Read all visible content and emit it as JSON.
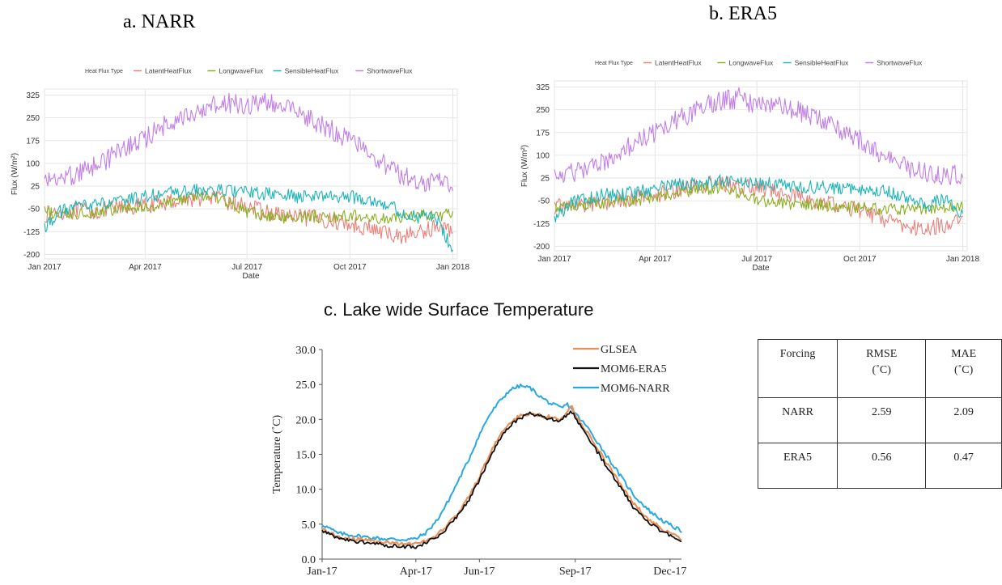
{
  "panels": {
    "a_title": "a.    NARR",
    "b_title": "b.    ERA5",
    "c_title": "c. Lake wide Surface Temperature"
  },
  "colors": {
    "LatentHeatFlux": "#e8817a",
    "LongwaveFlux": "#8ab022",
    "SensibleHeatFlux": "#1fb5b7",
    "ShortwaveFlux": "#c17fe6",
    "GLSEA": "#e8915a",
    "MOM6-ERA5": "#111111",
    "MOM6-NARR": "#29a9e0"
  },
  "chart_data": [
    {
      "id": "narr",
      "type": "line",
      "legend_title": "Heat Flux Type",
      "legend_placement": "top",
      "xlabel": "Date",
      "ylabel": "Flux (W/m²)",
      "xlim": [
        "2017-01-01",
        "2018-01-05"
      ],
      "ylim": [
        -215,
        345
      ],
      "yticks": [
        -200,
        -125,
        -50,
        25,
        100,
        175,
        250,
        325
      ],
      "xticks": [
        {
          "date": "2017-01-01",
          "label": "Jan 2017"
        },
        {
          "date": "2017-04-01",
          "label": "Apr 2017"
        },
        {
          "date": "2017-07-01",
          "label": "Jul 2017"
        },
        {
          "date": "2017-10-01",
          "label": "Oct 2017"
        },
        {
          "date": "2018-01-01",
          "label": "Jan 2018"
        }
      ],
      "grid": true,
      "x": [
        "2017-01-01",
        "2017-01-15",
        "2017-02-01",
        "2017-02-15",
        "2017-03-01",
        "2017-03-15",
        "2017-04-01",
        "2017-04-15",
        "2017-05-01",
        "2017-05-15",
        "2017-06-01",
        "2017-06-15",
        "2017-07-01",
        "2017-07-15",
        "2017-08-01",
        "2017-08-15",
        "2017-09-01",
        "2017-09-15",
        "2017-10-01",
        "2017-10-15",
        "2017-11-01",
        "2017-11-15",
        "2017-12-01",
        "2017-12-15",
        "2017-12-31"
      ],
      "series": [
        {
          "name": "LatentHeatFlux",
          "values": [
            -70,
            -60,
            -55,
            -60,
            -50,
            -45,
            -40,
            -30,
            -20,
            -15,
            -10,
            -30,
            -40,
            -60,
            -70,
            -80,
            -80,
            -90,
            -100,
            -110,
            -130,
            -140,
            -130,
            -110,
            -120
          ]
        },
        {
          "name": "LongwaveFlux",
          "values": [
            -60,
            -70,
            -65,
            -60,
            -55,
            -50,
            -45,
            -35,
            -20,
            -10,
            -10,
            -30,
            -60,
            -70,
            -80,
            -75,
            -75,
            -80,
            -70,
            -80,
            -85,
            -80,
            -70,
            -75,
            -65
          ]
        },
        {
          "name": "SensibleHeatFlux",
          "values": [
            -110,
            -60,
            -40,
            -30,
            -35,
            -20,
            -10,
            0,
            5,
            10,
            10,
            10,
            5,
            0,
            -5,
            -10,
            -5,
            -10,
            -10,
            -15,
            -30,
            -60,
            -80,
            -70,
            -180
          ]
        },
        {
          "name": "ShortwaveFlux",
          "values": [
            45,
            60,
            75,
            100,
            130,
            160,
            190,
            230,
            255,
            280,
            300,
            310,
            295,
            310,
            300,
            280,
            245,
            220,
            190,
            155,
            110,
            70,
            55,
            45,
            50
          ]
        }
      ]
    },
    {
      "id": "era5",
      "type": "line",
      "legend_title": "Heat Flux Type",
      "legend_placement": "top",
      "xlabel": "Date",
      "ylabel": "Flux (W/m²)",
      "xlim": [
        "2017-01-01",
        "2018-01-05"
      ],
      "ylim": [
        -215,
        345
      ],
      "yticks": [
        -200,
        -125,
        -50,
        25,
        100,
        175,
        250,
        325
      ],
      "xticks": [
        {
          "date": "2017-01-01",
          "label": "Jan 2017"
        },
        {
          "date": "2017-04-01",
          "label": "Apr 2017"
        },
        {
          "date": "2017-07-01",
          "label": "Jul 2017"
        },
        {
          "date": "2017-10-01",
          "label": "Oct 2017"
        },
        {
          "date": "2018-01-01",
          "label": "Jan 2018"
        }
      ],
      "grid": true,
      "x": [
        "2017-01-01",
        "2017-01-15",
        "2017-02-01",
        "2017-02-15",
        "2017-03-01",
        "2017-03-15",
        "2017-04-01",
        "2017-04-15",
        "2017-05-01",
        "2017-05-15",
        "2017-06-01",
        "2017-06-15",
        "2017-07-01",
        "2017-07-15",
        "2017-08-01",
        "2017-08-15",
        "2017-09-01",
        "2017-09-15",
        "2017-10-01",
        "2017-10-15",
        "2017-11-01",
        "2017-11-15",
        "2017-12-01",
        "2017-12-15",
        "2017-12-31"
      ],
      "series": [
        {
          "name": "LatentHeatFlux",
          "values": [
            -70,
            -65,
            -60,
            -55,
            -45,
            -40,
            -30,
            -20,
            -5,
            5,
            5,
            0,
            -10,
            -20,
            -30,
            -45,
            -55,
            -70,
            -80,
            -100,
            -120,
            -140,
            -140,
            -130,
            -120
          ]
        },
        {
          "name": "LongwaveFlux",
          "values": [
            -70,
            -70,
            -60,
            -60,
            -55,
            -50,
            -40,
            -30,
            -20,
            -10,
            -10,
            -25,
            -45,
            -55,
            -60,
            -60,
            -65,
            -70,
            -70,
            -75,
            -80,
            -80,
            -75,
            -70,
            -70
          ]
        },
        {
          "name": "SensibleHeatFlux",
          "values": [
            -110,
            -60,
            -40,
            -30,
            -30,
            -20,
            -10,
            0,
            5,
            10,
            15,
            15,
            10,
            5,
            0,
            -5,
            -5,
            -10,
            -10,
            -15,
            -25,
            -45,
            -70,
            -40,
            -100
          ]
        },
        {
          "name": "ShortwaveFlux",
          "values": [
            40,
            50,
            70,
            95,
            125,
            155,
            185,
            220,
            245,
            275,
            290,
            300,
            270,
            285,
            265,
            245,
            215,
            190,
            160,
            125,
            90,
            65,
            55,
            45,
            45
          ]
        }
      ]
    },
    {
      "id": "lake-temperature",
      "type": "line",
      "legend_placement": "top-right",
      "ylabel": "Temperature (˚C)",
      "xlim": [
        0,
        345
      ],
      "ylim": [
        0,
        30
      ],
      "yticks": [
        {
          "value": 0,
          "label": "0.0"
        },
        {
          "value": 5,
          "label": "5.0"
        },
        {
          "value": 10,
          "label": "10.0"
        },
        {
          "value": 15,
          "label": "15.0"
        },
        {
          "value": 20,
          "label": "20.0"
        },
        {
          "value": 25,
          "label": "25.0"
        },
        {
          "value": 30,
          "label": "30.0"
        }
      ],
      "xticks": [
        {
          "value": 0,
          "label": "Jan-17"
        },
        {
          "value": 90,
          "label": "Apr-17"
        },
        {
          "value": 151,
          "label": "Jun-17"
        },
        {
          "value": 243,
          "label": "Sep-17"
        },
        {
          "value": 334,
          "label": "Dec-17"
        }
      ],
      "grid": false,
      "x": [
        0,
        15,
        30,
        45,
        60,
        75,
        90,
        100,
        110,
        120,
        130,
        140,
        150,
        160,
        170,
        180,
        190,
        200,
        210,
        220,
        230,
        235,
        240,
        245,
        255,
        270,
        285,
        300,
        315,
        330,
        345
      ],
      "series": [
        {
          "name": "GLSEA",
          "values": [
            4.3,
            3.2,
            2.9,
            2.6,
            2.3,
            2.2,
            2.2,
            2.7,
            3.5,
            4.8,
            6.5,
            8.7,
            11.5,
            14.8,
            17.5,
            19.5,
            20.5,
            20.9,
            20.5,
            20.3,
            20.0,
            21.2,
            21.8,
            20.2,
            18.0,
            14.5,
            11.0,
            7.8,
            5.5,
            4.0,
            3.0
          ]
        },
        {
          "name": "MOM6-ERA5",
          "values": [
            4.0,
            3.0,
            2.6,
            2.3,
            2.0,
            1.8,
            1.8,
            2.3,
            3.2,
            4.5,
            6.2,
            8.2,
            11.0,
            14.2,
            17.0,
            19.0,
            20.2,
            20.8,
            20.5,
            20.0,
            19.7,
            20.8,
            21.0,
            19.8,
            17.5,
            14.0,
            10.5,
            7.2,
            5.0,
            3.7,
            2.7
          ]
        },
        {
          "name": "MOM6-NARR",
          "values": [
            5.0,
            3.7,
            3.4,
            3.1,
            2.9,
            2.8,
            2.9,
            3.8,
            5.5,
            8.0,
            11.0,
            14.0,
            17.5,
            20.5,
            22.5,
            24.2,
            24.8,
            24.5,
            23.2,
            22.2,
            21.6,
            22.2,
            21.5,
            20.5,
            18.8,
            15.5,
            12.2,
            9.0,
            6.8,
            5.2,
            4.0
          ]
        }
      ]
    }
  ],
  "table": {
    "header": {
      "forcing": "Forcing",
      "rmse": "RMSE",
      "rmse_unit": "(˚C)",
      "mae": "MAE",
      "mae_unit": "(˚C)"
    },
    "rows": [
      {
        "forcing": "NARR",
        "rmse": "2.59",
        "mae": "2.09"
      },
      {
        "forcing": "ERA5",
        "rmse": "0.56",
        "mae": "0.47"
      }
    ]
  }
}
